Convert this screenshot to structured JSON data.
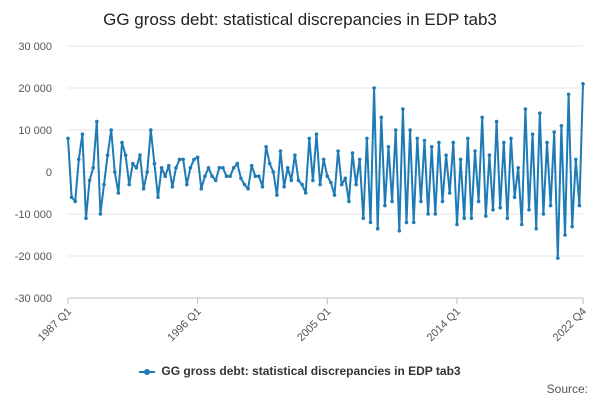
{
  "chart_data": {
    "type": "line",
    "title": "GG gross debt: statistical discrepancies in EDP tab3",
    "xlabel": "",
    "ylabel": "",
    "x_tick_labels": [
      "1987 Q1",
      "1996 Q1",
      "2005 Q1",
      "2014 Q1",
      "2022 Q4"
    ],
    "y_tick_labels": [
      "30 000",
      "20 000",
      "10 000",
      "0",
      "-10 000",
      "-20 000",
      "-30 000"
    ],
    "ylim": [
      -30000,
      30000
    ],
    "grid": "horizontal",
    "legend_position": "bottom",
    "x_start": "1987 Q1",
    "x_end": "2022 Q4",
    "series": [
      {
        "name": "GG gross debt: statistical discrepancies in EDP tab3",
        "color": "#1f7bb6",
        "values": [
          8000,
          -6000,
          -7000,
          3000,
          9000,
          -11000,
          -2000,
          1000,
          12000,
          -10000,
          -3000,
          4000,
          10000,
          0,
          -5000,
          7000,
          4000,
          -3000,
          2000,
          1000,
          4000,
          -4000,
          0,
          10000,
          2000,
          -6000,
          1000,
          -1000,
          1500,
          -3500,
          1000,
          3000,
          3000,
          -3000,
          1000,
          3000,
          3500,
          -4000,
          -1000,
          1000,
          -1000,
          -2000,
          1000,
          1000,
          -1000,
          -1000,
          1000,
          2000,
          -1500,
          -3000,
          -4000,
          1500,
          -1000,
          -1000,
          -3500,
          6000,
          2000,
          0,
          -5500,
          5000,
          -3500,
          1000,
          -2000,
          4000,
          -2000,
          -3000,
          -5000,
          8000,
          -2000,
          9000,
          -3000,
          3000,
          -1000,
          -2500,
          -5500,
          5000,
          -3000,
          -1500,
          -7000,
          4500,
          -3000,
          3000,
          -11000,
          8000,
          -12000,
          20000,
          -13500,
          13000,
          -8000,
          6000,
          -7000,
          10000,
          -14000,
          15000,
          -12000,
          10000,
          -12000,
          8000,
          -7000,
          7500,
          -10000,
          6000,
          -10000,
          7000,
          -7000,
          4000,
          -5000,
          7000,
          -12500,
          3000,
          -11000,
          8000,
          -11000,
          5000,
          -7000,
          13000,
          -10500,
          4000,
          -9000,
          12000,
          -8500,
          7000,
          -11000,
          8000,
          -6000,
          1000,
          -12500,
          15000,
          -9000,
          9000,
          -13500,
          14000,
          -10000,
          7000,
          -8000,
          9500,
          -20500,
          11000,
          -15000,
          18500,
          -13000,
          3000,
          -8000,
          21000
        ]
      }
    ]
  },
  "legend": {
    "label": "GG gross debt: statistical discrepancies in EDP tab3"
  },
  "footer": {
    "source_label": "Source:"
  }
}
